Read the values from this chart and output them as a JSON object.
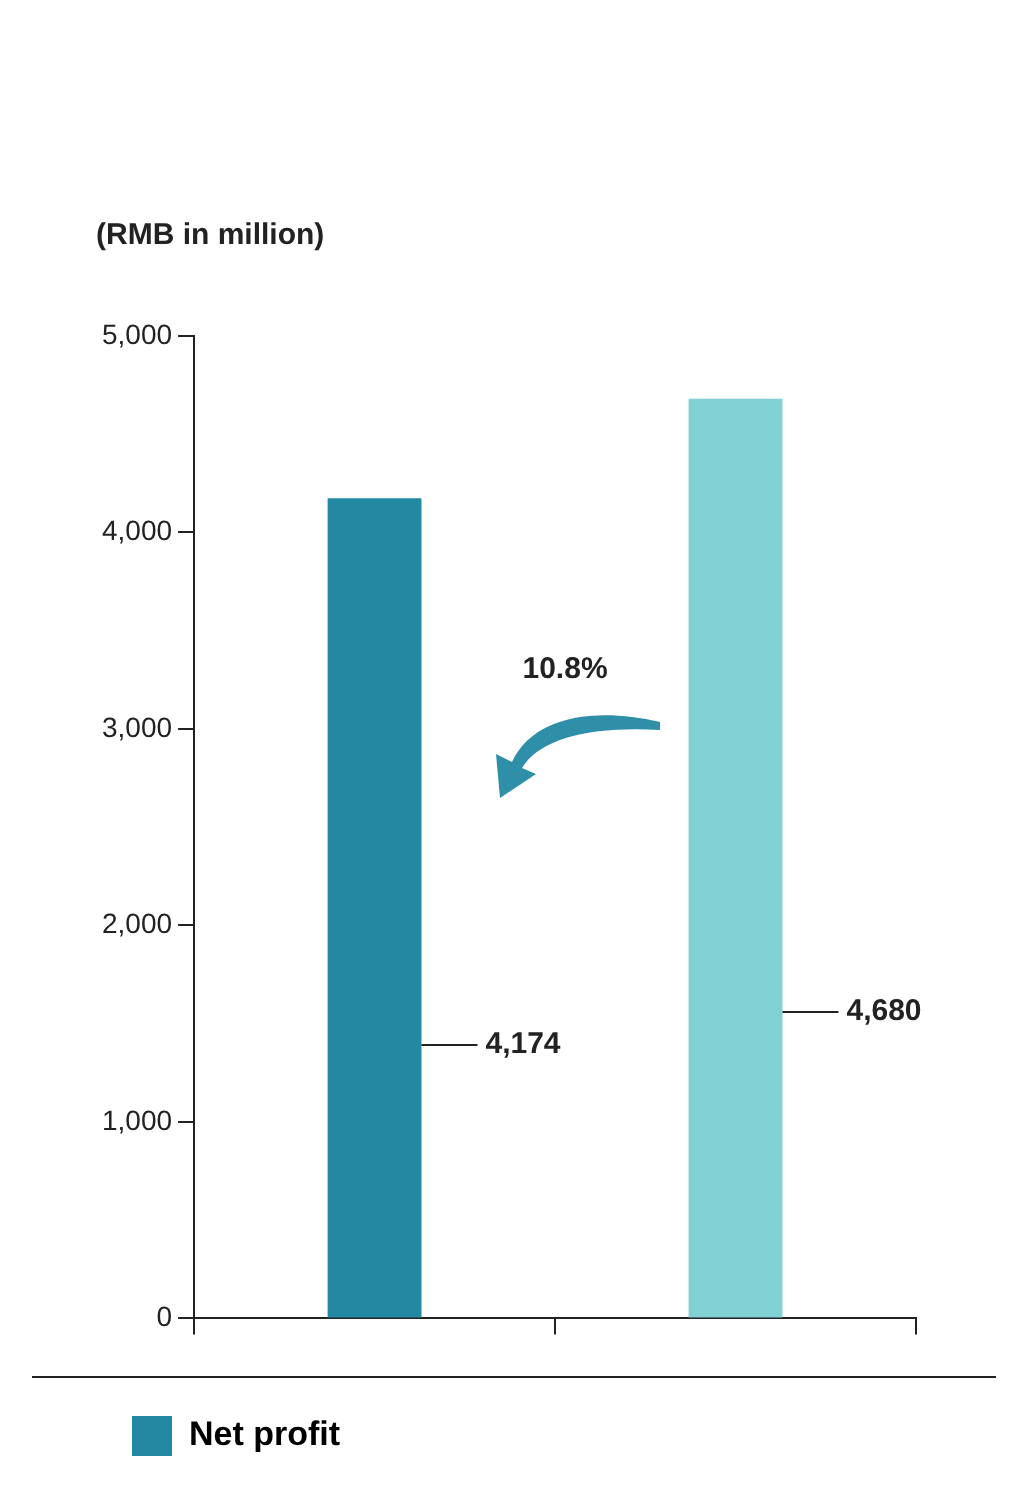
{
  "chart_data": {
    "type": "bar",
    "ylabel": "(RMB in million)",
    "categories": [
      null,
      null
    ],
    "series": [
      {
        "name": "Net profit",
        "color": "#2389a3",
        "colors": [
          "#2389a3",
          "#80d0d4"
        ],
        "values": [
          4174,
          4680
        ],
        "value_labels": [
          "4,174",
          "4,680"
        ]
      }
    ],
    "ylim": [
      0,
      5000
    ],
    "yticks": [
      0,
      {
        "value": 1000,
        "label": "1,000"
      },
      {
        "value": 2000,
        "label": "2,000"
      },
      {
        "value": 3000,
        "label": "3,000"
      },
      {
        "value": 4000,
        "label": "4,000"
      },
      {
        "value": 5000,
        "label": "5,000"
      }
    ],
    "grid": false,
    "legend": "bottom left",
    "annotations": [
      "10.8%"
    ]
  }
}
